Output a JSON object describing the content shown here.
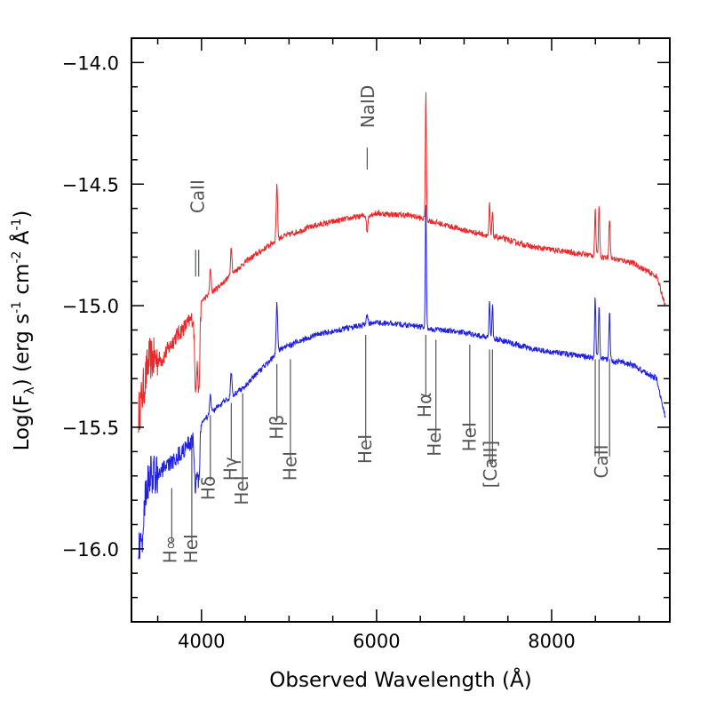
{
  "chart_data": {
    "type": "line",
    "title": "",
    "xlabel": "Observed Wavelength (Å)",
    "ylabel_parts": {
      "a": "Log(F",
      "sub": "λ",
      "b": ") (erg s",
      "sup1": "-1",
      "c": " cm",
      "sup2": "-2",
      "d": " Å",
      "sup3": "-1",
      "e": ")"
    },
    "xlim": [
      3200,
      9350
    ],
    "ylim": [
      -16.3,
      -13.9
    ],
    "x_ticks": [
      4000,
      6000,
      8000
    ],
    "x_tick_labels": [
      "4000",
      "6000",
      "8000"
    ],
    "x_minor_step": 500,
    "y_ticks": [
      -16.0,
      -15.5,
      -15.0,
      -14.5,
      -14.0
    ],
    "y_tick_labels": [
      "−16.0",
      "−15.5",
      "−15.0",
      "−14.5",
      "−14.0"
    ],
    "y_minor_step": 0.1,
    "series": [
      {
        "name": "upper spectrum",
        "color": "#e8282a",
        "base": [
          [
            3280,
            -15.45
          ],
          [
            3400,
            -15.22
          ],
          [
            3550,
            -15.22
          ],
          [
            3700,
            -15.13
          ],
          [
            3900,
            -15.05
          ],
          [
            4000,
            -14.98
          ],
          [
            4200,
            -14.92
          ],
          [
            4500,
            -14.82
          ],
          [
            4900,
            -14.72
          ],
          [
            5300,
            -14.67
          ],
          [
            5700,
            -14.64
          ],
          [
            6000,
            -14.62
          ],
          [
            6400,
            -14.63
          ],
          [
            6700,
            -14.66
          ],
          [
            7000,
            -14.69
          ],
          [
            7400,
            -14.72
          ],
          [
            7800,
            -14.76
          ],
          [
            8200,
            -14.78
          ],
          [
            8600,
            -14.8
          ],
          [
            8900,
            -14.82
          ],
          [
            9100,
            -14.86
          ],
          [
            9200,
            -14.88
          ],
          [
            9300,
            -15.0
          ]
        ],
        "features": [
          {
            "c": 3933,
            "w": 12,
            "d": -0.3
          },
          {
            "c": 3968,
            "w": 12,
            "d": -0.35
          },
          {
            "c": 4101,
            "w": 8,
            "d": 0.1
          },
          {
            "c": 4340,
            "w": 8,
            "d": 0.12
          },
          {
            "c": 4861,
            "w": 8,
            "d": 0.23
          },
          {
            "c": 5893,
            "w": 8,
            "d": -0.07
          },
          {
            "c": 6563,
            "w": 6,
            "d": 0.52
          },
          {
            "c": 7291,
            "w": 6,
            "d": 0.13
          },
          {
            "c": 7324,
            "w": 6,
            "d": 0.1
          },
          {
            "c": 8498,
            "w": 7,
            "d": 0.19
          },
          {
            "c": 8542,
            "w": 7,
            "d": 0.21
          },
          {
            "c": 8662,
            "w": 7,
            "d": 0.17
          }
        ]
      },
      {
        "name": "lower spectrum",
        "color": "#1f1fe0",
        "base": [
          [
            3280,
            -15.75
          ],
          [
            3400,
            -15.7
          ],
          [
            3550,
            -15.68
          ],
          [
            3700,
            -15.63
          ],
          [
            3900,
            -15.55
          ],
          [
            4000,
            -15.48
          ],
          [
            4200,
            -15.41
          ],
          [
            4500,
            -15.33
          ],
          [
            4900,
            -15.18
          ],
          [
            5300,
            -15.12
          ],
          [
            5700,
            -15.09
          ],
          [
            6000,
            -15.07
          ],
          [
            6400,
            -15.08
          ],
          [
            6700,
            -15.1
          ],
          [
            7000,
            -15.11
          ],
          [
            7400,
            -15.14
          ],
          [
            7800,
            -15.18
          ],
          [
            8200,
            -15.2
          ],
          [
            8600,
            -15.22
          ],
          [
            8900,
            -15.24
          ],
          [
            9100,
            -15.28
          ],
          [
            9200,
            -15.3
          ],
          [
            9300,
            -15.46
          ]
        ],
        "features": [
          {
            "c": 3300,
            "w": 40,
            "d": -0.25
          },
          {
            "c": 3933,
            "w": 12,
            "d": -0.22
          },
          {
            "c": 3968,
            "w": 12,
            "d": -0.22
          },
          {
            "c": 4101,
            "w": 8,
            "d": 0.08
          },
          {
            "c": 4340,
            "w": 8,
            "d": 0.1
          },
          {
            "c": 4861,
            "w": 8,
            "d": 0.21
          },
          {
            "c": 5893,
            "w": 8,
            "d": 0.05
          },
          {
            "c": 6563,
            "w": 6,
            "d": 0.52
          },
          {
            "c": 7291,
            "w": 6,
            "d": 0.15
          },
          {
            "c": 7324,
            "w": 6,
            "d": 0.14
          },
          {
            "c": 8498,
            "w": 7,
            "d": 0.25
          },
          {
            "c": 8542,
            "w": 7,
            "d": 0.22
          },
          {
            "c": 8662,
            "w": 7,
            "d": 0.19
          }
        ]
      }
    ],
    "line_ids": [
      {
        "name": "H∞",
        "x_text": 3640,
        "y_text": -16.06,
        "ticks": [
          {
            "x": 3660,
            "y1": -15.75,
            "y2": -15.97
          }
        ]
      },
      {
        "name": "HeI",
        "x_text": 3880,
        "y_text": -16.06,
        "ticks": [
          {
            "x": 3889,
            "y1": -15.55,
            "y2": -15.97
          }
        ]
      },
      {
        "name": "Hδ",
        "x_text": 4080,
        "y_text": -15.8,
        "ticks": [
          {
            "x": 4101,
            "y1": -15.45,
            "y2": -15.72
          }
        ]
      },
      {
        "name": "Hγ",
        "x_text": 4330,
        "y_text": -15.72,
        "ticks": [
          {
            "x": 4340,
            "y1": -15.4,
            "y2": -15.63
          }
        ]
      },
      {
        "name": "HeI",
        "x_text": 4460,
        "y_text": -15.82,
        "ticks": [
          {
            "x": 4471,
            "y1": -15.36,
            "y2": -15.74
          }
        ]
      },
      {
        "name": "Hβ",
        "x_text": 4860,
        "y_text": -15.55,
        "ticks": [
          {
            "x": 4861,
            "y1": -15.24,
            "y2": -15.47
          }
        ]
      },
      {
        "name": "HeI",
        "x_text": 5010,
        "y_text": -15.72,
        "ticks": [
          {
            "x": 5016,
            "y1": -15.22,
            "y2": -15.63
          }
        ]
      },
      {
        "name": "HeI",
        "x_text": 5870,
        "y_text": -15.65,
        "ticks": [
          {
            "x": 5876,
            "y1": -15.12,
            "y2": -15.56
          }
        ]
      },
      {
        "name": "Hα",
        "x_text": 6550,
        "y_text": -15.46,
        "ticks": [
          {
            "x": 6563,
            "y1": -15.12,
            "y2": -15.37
          }
        ]
      },
      {
        "name": "HeI",
        "x_text": 6660,
        "y_text": -15.62,
        "ticks": [
          {
            "x": 6678,
            "y1": -15.14,
            "y2": -15.54
          }
        ]
      },
      {
        "name": "HeI",
        "x_text": 7060,
        "y_text": -15.6,
        "ticks": [
          {
            "x": 7065,
            "y1": -15.16,
            "y2": -15.52
          }
        ]
      },
      {
        "name": "[CaII]",
        "x_text": 7300,
        "y_text": -15.75,
        "ticks": [
          {
            "x": 7291,
            "y1": -15.18,
            "y2": -15.65
          },
          {
            "x": 7324,
            "y1": -15.18,
            "y2": -15.65
          }
        ]
      },
      {
        "name": "CaII",
        "x_text": 8570,
        "y_text": -15.71,
        "ticks": [
          {
            "x": 8498,
            "y1": -15.22,
            "y2": -15.62
          },
          {
            "x": 8542,
            "y1": -15.22,
            "y2": -15.62
          },
          {
            "x": 8662,
            "y1": -15.22,
            "y2": -15.62
          }
        ]
      },
      {
        "name": "CaII",
        "x_text": 3955,
        "y_text": -14.62,
        "ticks": [
          {
            "x": 3933,
            "y1": -14.77,
            "y2": -14.88
          },
          {
            "x": 3968,
            "y1": -14.77,
            "y2": -14.88
          }
        ]
      },
      {
        "name": "NaID",
        "x_text": 5900,
        "y_text": -14.27,
        "ticks": [
          {
            "x": 5893,
            "y1": -14.35,
            "y2": -14.44
          }
        ]
      }
    ]
  }
}
